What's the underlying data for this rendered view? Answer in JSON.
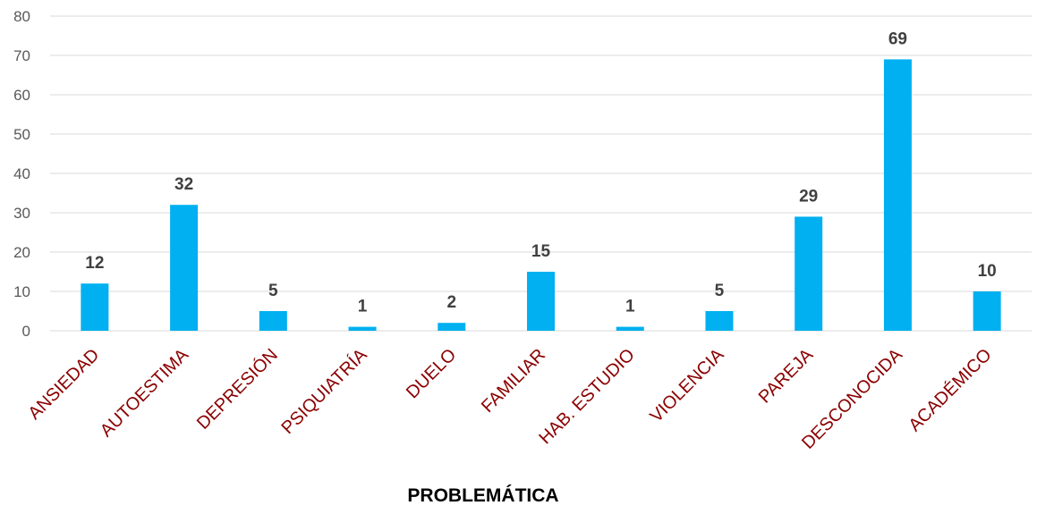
{
  "chart_data": {
    "type": "bar",
    "categories": [
      "ANSIEDAD",
      "AUTOESTIMA",
      "DEPRESIÓN",
      "PSIQUIATRÍA",
      "DUELO",
      "FAMILIAR",
      "HAB. ESTUDIO",
      "VIOLENCIA",
      "PAREJA",
      "DESCONOCIDA",
      "ACADÉMICO"
    ],
    "values": [
      12,
      32,
      5,
      1,
      2,
      15,
      1,
      5,
      29,
      69,
      10
    ],
    "title": "",
    "xlabel": "PROBLEMÁTICA",
    "ylabel": "",
    "ylim": [
      0,
      80
    ],
    "yticks": [
      "0",
      "10",
      "20",
      "30",
      "40",
      "50",
      "60",
      "70",
      "80"
    ],
    "grid": true,
    "legend": "none",
    "data_labels": true,
    "colors": {
      "bar": "#00b0f0",
      "tick_label_x": "#8b0000",
      "data_label": "#404040",
      "grid": "#d9d9d9"
    }
  }
}
